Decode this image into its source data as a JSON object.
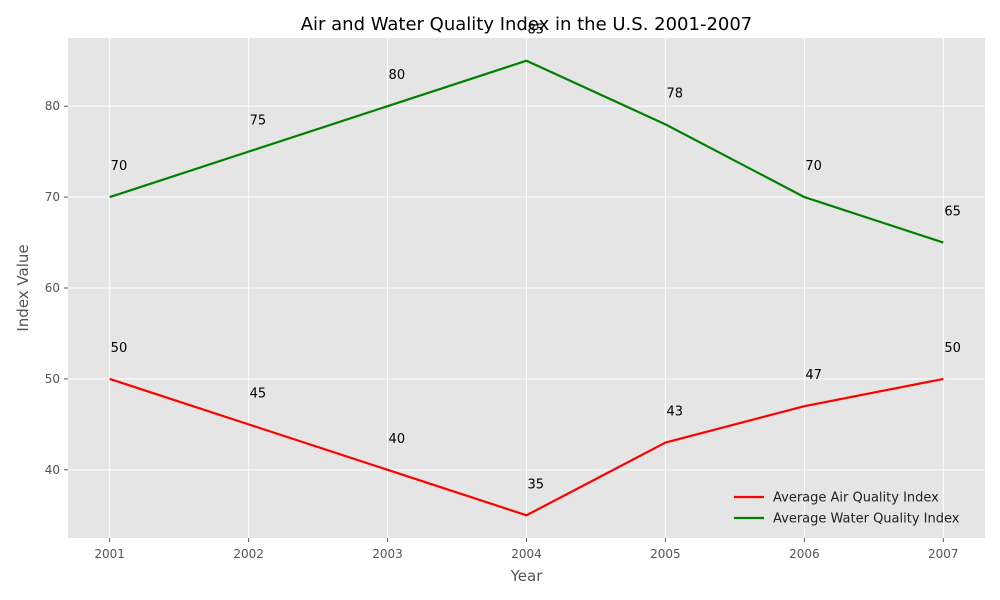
{
  "chart_data": {
    "type": "line",
    "title": "Air and Water Quality Index in the U.S. 2001-2007",
    "xlabel": "Year",
    "ylabel": "Index Value",
    "x": [
      "2001",
      "2002",
      "2003",
      "2004",
      "2005",
      "2006",
      "2007"
    ],
    "yticks": [
      "40",
      "50",
      "60",
      "70",
      "80"
    ],
    "ylim": [
      32.5,
      87.5
    ],
    "grid": true,
    "legend_position": "bottom-right",
    "series": [
      {
        "name": "Average Air Quality Index",
        "color": "#ff0000",
        "values": [
          50,
          45,
          40,
          35,
          43,
          47,
          50
        ],
        "labels": [
          "50",
          "45",
          "40",
          "35",
          "43",
          "47",
          "50"
        ]
      },
      {
        "name": "Average Water Quality Index",
        "color": "#008000",
        "values": [
          70,
          75,
          80,
          85,
          78,
          70,
          65
        ],
        "labels": [
          "70",
          "75",
          "80",
          "85",
          "78",
          "70",
          "65"
        ]
      }
    ]
  }
}
